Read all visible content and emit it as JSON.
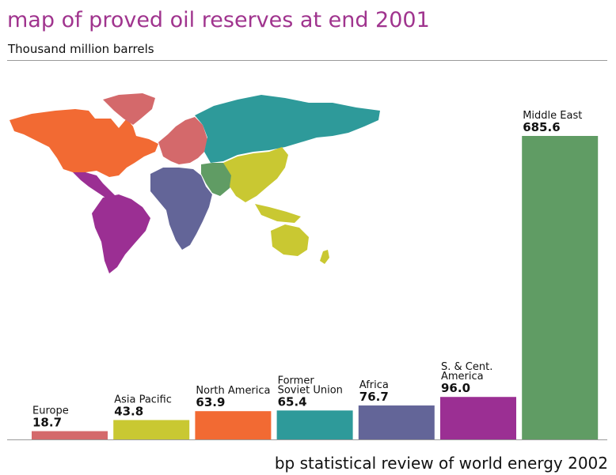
{
  "title": "map of proved oil reserves at end 2001",
  "subtitle": "Thousand million barrels",
  "footer": "bp statistical review of world energy 2002",
  "chart_data": {
    "type": "bar",
    "title": "map of proved oil reserves at end 2001",
    "ylabel": "Thousand million barrels",
    "ylim": [
      0,
      685.6
    ],
    "grid": false,
    "categories": [
      [
        "Europe"
      ],
      [
        "Asia Pacific"
      ],
      [
        "North America"
      ],
      [
        "Former",
        "Soviet Union"
      ],
      [
        "Africa"
      ],
      [
        "S. & Cent.",
        "America"
      ],
      [
        "Middle East"
      ]
    ],
    "values": [
      18.7,
      43.8,
      63.9,
      65.4,
      76.7,
      96.0,
      685.6
    ],
    "value_labels": [
      "18.7",
      "43.8",
      "63.9",
      "65.4",
      "76.7",
      "96.0",
      "685.6"
    ],
    "colors": [
      "#d4696b",
      "#c9c832",
      "#f26a33",
      "#2e9a9a",
      "#636598",
      "#9b2f93",
      "#609c64"
    ]
  }
}
